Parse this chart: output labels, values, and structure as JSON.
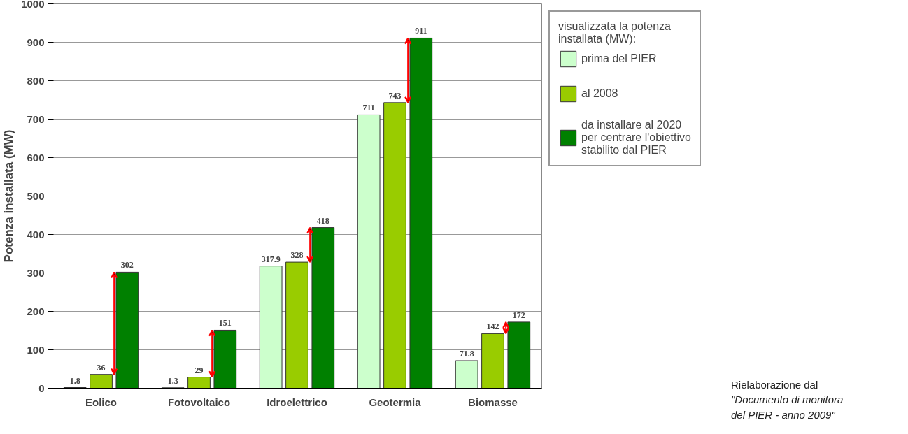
{
  "chart_data": {
    "type": "bar",
    "ylabel": "Potenza installata (MW)",
    "legend_title": "visualizzata la potenza installata (MW):",
    "categories": [
      "Eolico",
      "Fotovoltaico",
      "Idroelettrico",
      "Geotermia",
      "Biomasse"
    ],
    "series": [
      {
        "name": "prima del PIER",
        "color": "#ccffcc",
        "values": [
          1.8,
          1.3,
          317.9,
          711,
          71.8
        ]
      },
      {
        "name": "al 2008",
        "color": "#99cc00",
        "values": [
          36,
          29,
          328,
          743,
          142
        ]
      },
      {
        "name": "da installare al 2020 per centrare l'obiettivo stabilito dal PIER",
        "color": "#008000",
        "values": [
          302,
          151,
          418,
          911,
          172
        ]
      }
    ],
    "ylim": [
      0,
      1000
    ],
    "yticks": [
      0,
      100,
      200,
      300,
      400,
      500,
      600,
      700,
      800,
      900,
      1000
    ],
    "grid": "y",
    "legend": "top right",
    "data_labels": true,
    "annotations": [
      "Rielaborazione dal",
      "\"Documento di monitora",
      "del PIER - anno 2009\""
    ]
  }
}
